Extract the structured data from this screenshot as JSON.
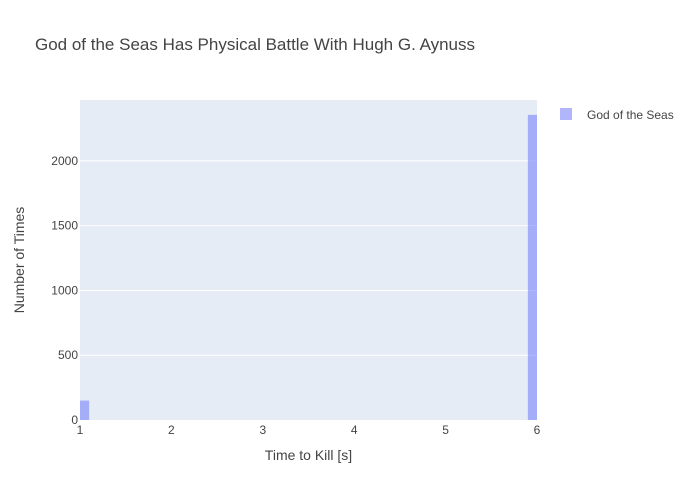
{
  "chart_data": {
    "type": "bar",
    "title": "God of the Seas Has Physical Battle With Hugh G. Aynuss",
    "xlabel": "Time to Kill [s]",
    "ylabel": "Number of Times",
    "xlim": [
      1,
      6
    ],
    "ylim": [
      0,
      2470
    ],
    "x_ticks": [
      "1",
      "2",
      "3",
      "4",
      "5",
      "6"
    ],
    "y_ticks": [
      "0",
      "500",
      "1000",
      "1500",
      "2000"
    ],
    "grid": true,
    "legend_position": "top-right",
    "series": [
      {
        "name": "God of the Seas",
        "color": "#636efa",
        "opacity": 0.5,
        "bins": [
          {
            "x0": 1.0,
            "x1": 1.1,
            "value": 150
          },
          {
            "x0": 5.9,
            "x1": 6.0,
            "value": 2355
          }
        ]
      }
    ]
  },
  "colors": {
    "plot_bg": "#e5ecf6",
    "grid": "#ffffff",
    "bar": "#636efa"
  }
}
